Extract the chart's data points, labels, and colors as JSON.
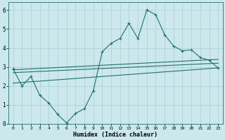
{
  "xlabel": "Humidex (Indice chaleur)",
  "bg_color": "#cce8ec",
  "grid_color": "#a8cdd4",
  "line_color": "#1e7070",
  "xlim": [
    -0.5,
    23.5
  ],
  "ylim": [
    0,
    6.4
  ],
  "xticks": [
    0,
    1,
    2,
    3,
    4,
    5,
    6,
    7,
    8,
    9,
    10,
    11,
    12,
    13,
    14,
    15,
    16,
    17,
    18,
    19,
    20,
    21,
    22,
    23
  ],
  "yticks": [
    0,
    1,
    2,
    3,
    4,
    5,
    6
  ],
  "line1_x": [
    0,
    1,
    2,
    3,
    4,
    5,
    6,
    7,
    8,
    9,
    10,
    11,
    12,
    13,
    14,
    15,
    16,
    17,
    18,
    19,
    20,
    21,
    22,
    23
  ],
  "line1_y": [
    2.9,
    2.0,
    2.5,
    1.5,
    1.1,
    0.5,
    0.05,
    0.55,
    0.8,
    1.75,
    3.8,
    4.25,
    4.5,
    5.3,
    4.5,
    6.0,
    5.75,
    4.7,
    4.1,
    3.85,
    3.9,
    3.5,
    3.35,
    2.95
  ],
  "line2_x": [
    0,
    23
  ],
  "line2_y": [
    2.85,
    3.4
  ],
  "line3_x": [
    0,
    23
  ],
  "line3_y": [
    2.7,
    3.2
  ],
  "line4_x": [
    0,
    23
  ],
  "line4_y": [
    2.15,
    2.95
  ]
}
